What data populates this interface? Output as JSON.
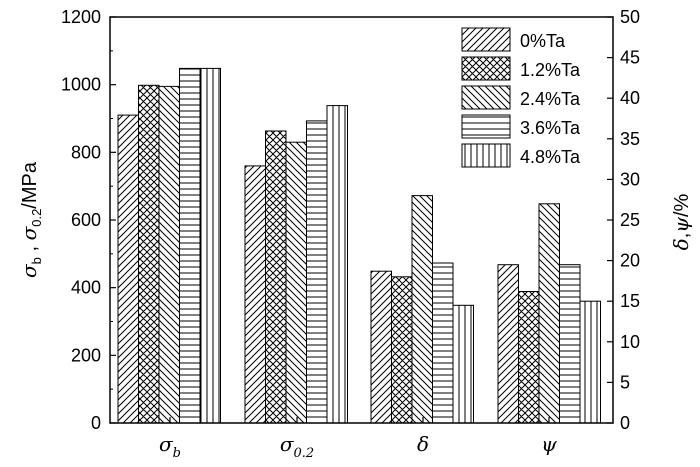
{
  "chart_data": {
    "type": "bar",
    "categories": [
      {
        "main": "σ",
        "sub": "b"
      },
      {
        "main": "σ",
        "sub": "0.2"
      },
      {
        "main": "δ",
        "sub": ""
      },
      {
        "main": "ψ",
        "sub": ""
      }
    ],
    "left_axis": {
      "label_parts": [
        {
          "text": "σ",
          "sub": "b"
        },
        {
          "text": " , ",
          "sub": ""
        },
        {
          "text": "σ",
          "sub": "0.2"
        },
        {
          "text": "/MPa",
          "sub": ""
        }
      ],
      "ylim": [
        0,
        1200
      ],
      "ticks": [
        "0",
        "200",
        "400",
        "600",
        "800",
        "1000",
        "1200"
      ]
    },
    "right_axis": {
      "label_parts": [
        {
          "text": "δ",
          "sub": ""
        },
        {
          "text": ",",
          "sub": ""
        },
        {
          "text": "ψ",
          "sub": ""
        },
        {
          "text": "/%",
          "sub": ""
        }
      ],
      "ylim": [
        0,
        50
      ],
      "ticks": [
        "0",
        "5",
        "10",
        "15",
        "20",
        "25",
        "30",
        "35",
        "40",
        "45",
        "50"
      ]
    },
    "series": [
      {
        "name": "0%Ta",
        "pattern": "diag-fwd",
        "values_mpa": [
          910,
          760
        ],
        "values_pct": [
          18.7,
          19.5
        ]
      },
      {
        "name": "1.2%Ta",
        "pattern": "crosshatch",
        "values_mpa": [
          998,
          863
        ],
        "values_pct": [
          18.0,
          16.2
        ]
      },
      {
        "name": "2.4%Ta",
        "pattern": "diag-back",
        "values_mpa": [
          995,
          830
        ],
        "values_pct": [
          28.0,
          27.0
        ]
      },
      {
        "name": "3.6%Ta",
        "pattern": "horizontal",
        "values_mpa": [
          1048,
          893
        ],
        "values_pct": [
          19.7,
          19.5
        ]
      },
      {
        "name": "4.8%Ta",
        "pattern": "vertical",
        "values_mpa": [
          1048,
          938
        ],
        "values_pct": [
          14.5,
          15.0
        ]
      }
    ],
    "legend_position": "top-right",
    "grid": false
  }
}
